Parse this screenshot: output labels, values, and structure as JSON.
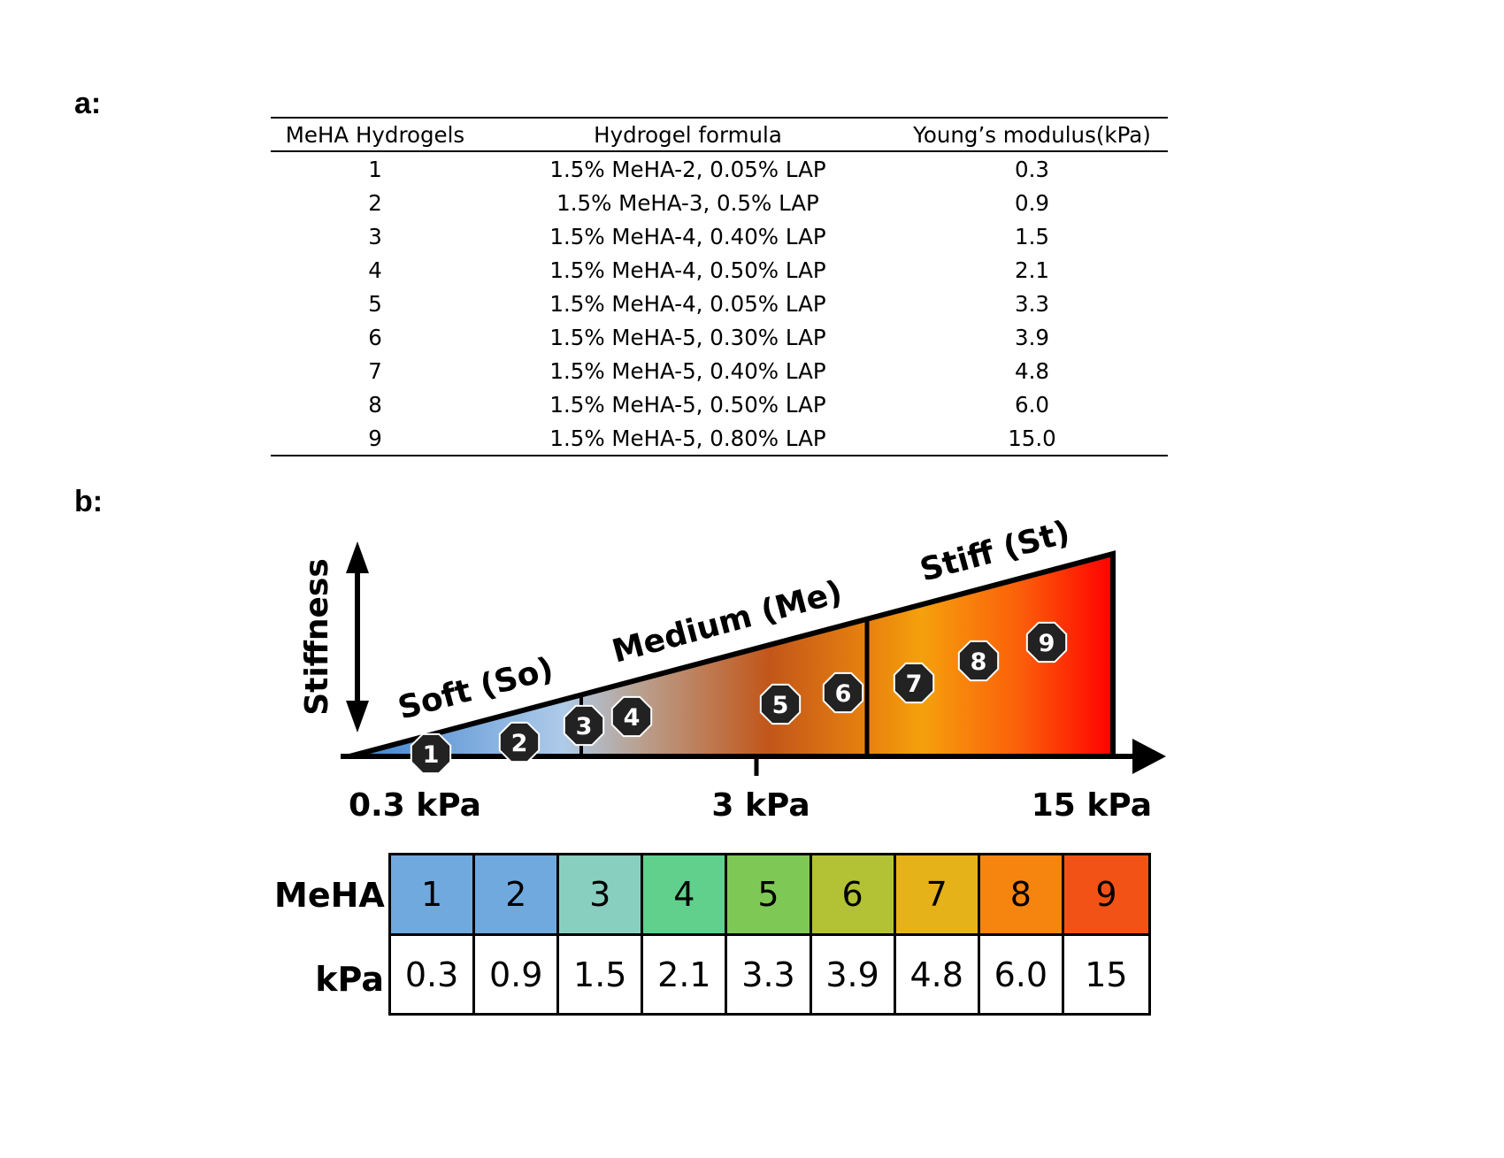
{
  "panel_labels": {
    "a": "a:",
    "b": "b:"
  },
  "table_a": {
    "headers": [
      "MeHA Hydrogels",
      "Hydrogel formula",
      "Young’s modulus(kPa)"
    ],
    "rows": [
      [
        "1",
        "1.5% MeHA-2, 0.05% LAP",
        "0.3"
      ],
      [
        "2",
        "1.5% MeHA-3, 0.5% LAP",
        "0.9"
      ],
      [
        "3",
        "1.5% MeHA-4, 0.40% LAP",
        "1.5"
      ],
      [
        "4",
        "1.5% MeHA-4, 0.50% LAP",
        "2.1"
      ],
      [
        "5",
        "1.5% MeHA-4, 0.05% LAP",
        "3.3"
      ],
      [
        "6",
        "1.5% MeHA-5, 0.30% LAP",
        "3.9"
      ],
      [
        "7",
        "1.5% MeHA-5, 0.40% LAP",
        "4.8"
      ],
      [
        "8",
        "1.5% MeHA-5, 0.50% LAP",
        "6.0"
      ],
      [
        "9",
        "1.5% MeHA-5, 0.80% LAP",
        "15.0"
      ]
    ]
  },
  "diagram": {
    "y_axis_label": "Stiffness",
    "zones": [
      "Soft (So)",
      "Medium (Me)",
      "Stiff (St)"
    ],
    "axis_ticks": [
      "0.3 kPa",
      "3 kPa",
      "15 kPa"
    ],
    "markers": [
      "1",
      "2",
      "3",
      "4",
      "5",
      "6",
      "7",
      "8",
      "9"
    ],
    "gradient_colors": [
      "#3a7fd0",
      "#aecbe8",
      "#b9a08f",
      "#c2561a",
      "#e7820e",
      "#f5a00c",
      "#fb5e0a",
      "#ff0000"
    ]
  },
  "legend": {
    "row_labels": {
      "meha": "MeHA",
      "kpa": "kPa"
    },
    "meha": [
      "1",
      "2",
      "3",
      "4",
      "5",
      "6",
      "7",
      "8",
      "9"
    ],
    "kpa": [
      "0.3",
      "0.9",
      "1.5",
      "2.1",
      "3.3",
      "3.9",
      "4.8",
      "6.0",
      "15"
    ],
    "colors": [
      "#70a9de",
      "#70a9de",
      "#88cfc0",
      "#60d08c",
      "#7ec955",
      "#b3c235",
      "#e6b21a",
      "#f6850f",
      "#f25215"
    ]
  }
}
